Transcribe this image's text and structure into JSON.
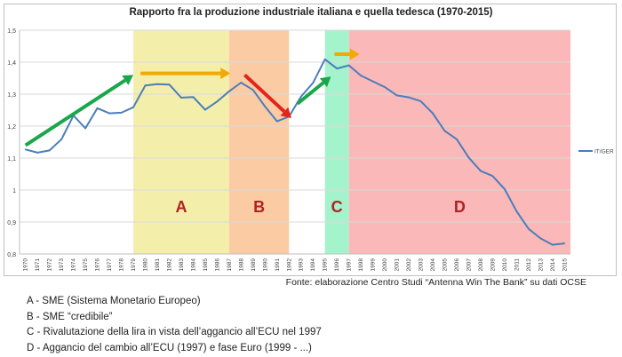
{
  "chart_data": {
    "type": "line",
    "title": "Rapporto fra la produzione industriale italiana e quella tedesca (1970-2015)",
    "xlabel": "",
    "ylabel": "",
    "ylim": [
      0.8,
      1.5
    ],
    "yticks": [
      "0,8",
      "0,9",
      "1",
      "1,1",
      "1,2",
      "1,3",
      "1,4",
      "1,5"
    ],
    "grid": true,
    "legend_position": "right",
    "x": [
      1970,
      1971,
      1972,
      1973,
      1974,
      1975,
      1976,
      1977,
      1978,
      1979,
      1980,
      1981,
      1982,
      1983,
      1984,
      1985,
      1986,
      1987,
      1988,
      1989,
      1990,
      1991,
      1992,
      1993,
      1994,
      1995,
      1996,
      1997,
      1998,
      1999,
      2000,
      2001,
      2002,
      2003,
      2004,
      2005,
      2006,
      2007,
      2008,
      2009,
      2010,
      2011,
      2012,
      2013,
      2014,
      2015
    ],
    "series": [
      {
        "name": "IT/GER",
        "color": "#4a7ebb",
        "values": [
          1.127,
          1.117,
          1.124,
          1.159,
          1.233,
          1.193,
          1.256,
          1.24,
          1.242,
          1.259,
          1.327,
          1.331,
          1.33,
          1.289,
          1.291,
          1.251,
          1.277,
          1.309,
          1.336,
          1.313,
          1.261,
          1.215,
          1.23,
          1.292,
          1.335,
          1.409,
          1.38,
          1.39,
          1.358,
          1.34,
          1.322,
          1.296,
          1.29,
          1.278,
          1.24,
          1.185,
          1.159,
          1.102,
          1.06,
          1.044,
          1.003,
          0.934,
          0.879,
          0.849,
          0.829,
          0.833
        ]
      }
    ],
    "regions": [
      {
        "label": "A",
        "x_start": 1979,
        "x_end": 1987,
        "fill": "#f3eeaa",
        "label_color": "#b22222"
      },
      {
        "label": "B",
        "x_start": 1987,
        "x_end": 1992,
        "fill": "#fbcca4",
        "label_color": "#b22222"
      },
      {
        "label": "C",
        "x_start": 1995,
        "x_end": 1997,
        "fill": "#a5f3cc",
        "label_color": "#b22222"
      },
      {
        "label": "D",
        "x_start": 1997,
        "x_end": 2016,
        "fill": "#fbb8b8",
        "label_color": "#b22222"
      }
    ],
    "arrows": [
      {
        "name": "green-rise-arrow-1",
        "from": [
          1970,
          1.14
        ],
        "to": [
          1979,
          1.36
        ],
        "color": "#1aa64a"
      },
      {
        "name": "orange-flat-arrow-1",
        "from": [
          1979.6,
          1.365
        ],
        "to": [
          1987.1,
          1.365
        ],
        "color": "#f2a900"
      },
      {
        "name": "red-fall-arrow",
        "from": [
          1988.3,
          1.36
        ],
        "to": [
          1992.2,
          1.225
        ],
        "color": "#e3241b"
      },
      {
        "name": "green-rise-arrow-2",
        "from": [
          1992.7,
          1.27
        ],
        "to": [
          1995.5,
          1.355
        ],
        "color": "#1aa64a"
      },
      {
        "name": "orange-flat-arrow-2",
        "from": [
          1995.8,
          1.425
        ],
        "to": [
          1997.9,
          1.425
        ],
        "color": "#f2a900"
      }
    ]
  },
  "source_text": "Fonte: elaborazione Centro Studi “Antenna Win The Bank” su dati OCSE",
  "notes": [
    "A - SME (Sistema Monetario Europeo)",
    "B - SME “credibile”",
    "C - Rivalutazione della lira in vista dell’aggancio all’ECU nel 1997",
    "D - Aggancio del cambio all’ECU (1997) e fase Euro (1999 - ...)"
  ]
}
